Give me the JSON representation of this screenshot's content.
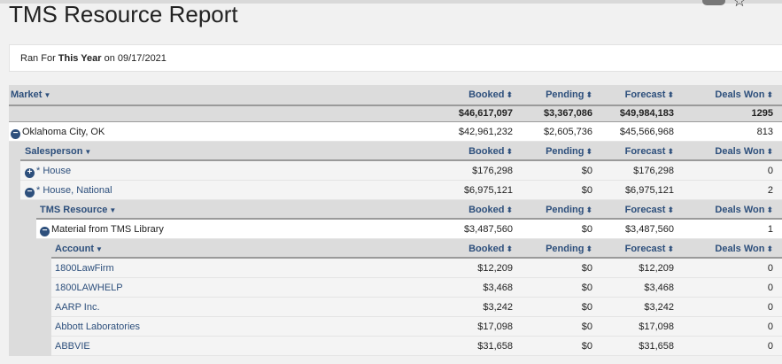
{
  "page": {
    "title": "TMS Resource Report",
    "ran_for_prefix": "Ran For ",
    "ran_for_period": "This Year",
    "ran_for_suffix": " on 09/17/2021"
  },
  "columns": {
    "booked": "Booked",
    "pending": "Pending",
    "forecast": "Forecast",
    "deals_won": "Deals Won"
  },
  "market": {
    "header": "Market",
    "totals": {
      "booked": "$46,617,097",
      "pending": "$3,367,086",
      "forecast": "$49,984,183",
      "deals": "1295"
    },
    "row": {
      "label": "Oklahoma City, OK",
      "booked": "$42,961,232",
      "pending": "$2,605,736",
      "forecast": "$45,566,968",
      "deals": "813"
    }
  },
  "salesperson": {
    "header": "Salesperson",
    "rows": [
      {
        "label": "* House",
        "booked": "$176,298",
        "pending": "$0",
        "forecast": "$176,298",
        "deals": "0"
      },
      {
        "label": "* House, National",
        "booked": "$6,975,121",
        "pending": "$0",
        "forecast": "$6,975,121",
        "deals": "2"
      }
    ]
  },
  "resource": {
    "header": "TMS Resource",
    "row": {
      "label": "Material from TMS Library",
      "booked": "$3,487,560",
      "pending": "$0",
      "forecast": "$3,487,560",
      "deals": "1"
    }
  },
  "account": {
    "header": "Account",
    "rows": [
      {
        "label": "1800LawFirm",
        "booked": "$12,209",
        "pending": "$0",
        "forecast": "$12,209",
        "deals": "0"
      },
      {
        "label": "1800LAWHELP",
        "booked": "$3,468",
        "pending": "$0",
        "forecast": "$3,468",
        "deals": "0"
      },
      {
        "label": "AARP Inc.",
        "booked": "$3,242",
        "pending": "$0",
        "forecast": "$3,242",
        "deals": "0"
      },
      {
        "label": "Abbott Laboratories",
        "booked": "$17,098",
        "pending": "$0",
        "forecast": "$17,098",
        "deals": "0"
      },
      {
        "label": "ABBVIE",
        "booked": "$31,658",
        "pending": "$0",
        "forecast": "$31,658",
        "deals": "0"
      }
    ]
  },
  "icons": {
    "sort": "sort-icon",
    "caret": "caret-down-icon",
    "expand": "plus-circle-icon",
    "collapse": "minus-circle-icon",
    "star": "star-icon"
  }
}
